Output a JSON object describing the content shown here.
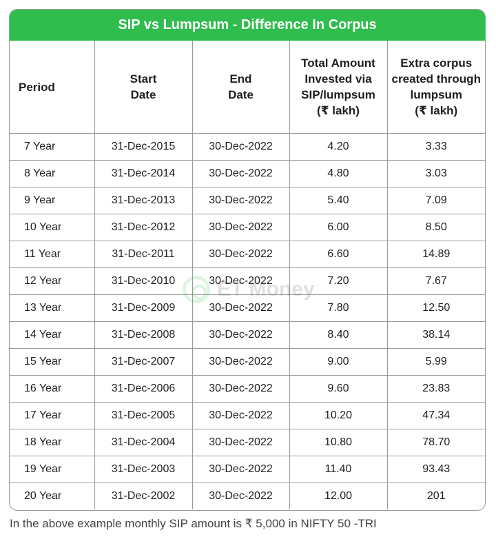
{
  "title": "SIP vs Lumpsum - Difference In Corpus",
  "headers": [
    "Period",
    "Start\nDate",
    "End\nDate",
    "Total Amount\nInvested via\nSIP/lumpsum\n(₹ lakh)",
    "Extra corpus\ncreated through\nlumpsum\n(₹ lakh)"
  ],
  "rows": [
    [
      "7 Year",
      "31-Dec-2015",
      "30-Dec-2022",
      "4.20",
      "3.33"
    ],
    [
      "8 Year",
      "31-Dec-2014",
      "30-Dec-2022",
      "4.80",
      "3.03"
    ],
    [
      "9 Year",
      "31-Dec-2013",
      "30-Dec-2022",
      "5.40",
      "7.09"
    ],
    [
      "10 Year",
      "31-Dec-2012",
      "30-Dec-2022",
      "6.00",
      "8.50"
    ],
    [
      "11 Year",
      "31-Dec-2011",
      "30-Dec-2022",
      "6.60",
      "14.89"
    ],
    [
      "12 Year",
      "31-Dec-2010",
      "30-Dec-2022",
      "7.20",
      "7.67"
    ],
    [
      "13 Year",
      "31-Dec-2009",
      "30-Dec-2022",
      "7.80",
      "12.50"
    ],
    [
      "14 Year",
      "31-Dec-2008",
      "30-Dec-2022",
      "8.40",
      "38.14"
    ],
    [
      "15 Year",
      "31-Dec-2007",
      "30-Dec-2022",
      "9.00",
      "5.99"
    ],
    [
      "16 Year",
      "31-Dec-2006",
      "30-Dec-2022",
      "9.60",
      "23.83"
    ],
    [
      "17 Year",
      "31-Dec-2005",
      "30-Dec-2022",
      "10.20",
      "47.34"
    ],
    [
      "18 Year",
      "31-Dec-2004",
      "30-Dec-2022",
      "10.80",
      "78.70"
    ],
    [
      "19 Year",
      "31-Dec-2003",
      "30-Dec-2022",
      "11.40",
      "93.43"
    ],
    [
      "20 Year",
      "31-Dec-2002",
      "30-Dec-2022",
      "12.00",
      "201"
    ]
  ],
  "watermark": "ET Money",
  "footnote": "In the above example monthly SIP amount is ₹ 5,000 in NIFTY 50 -TRI",
  "colors": {
    "accent": "#2fbd4d",
    "border": "#9a9a9a"
  }
}
